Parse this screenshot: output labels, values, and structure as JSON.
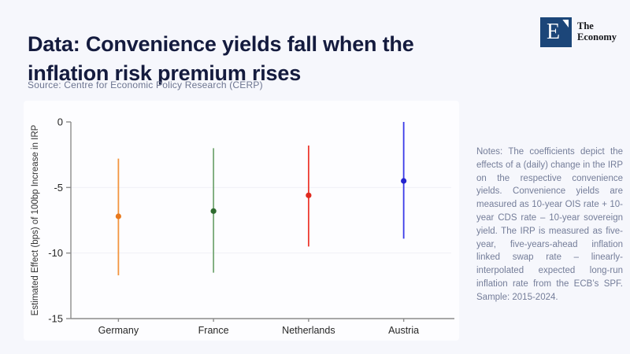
{
  "header": {
    "title": "Data: Convenience yields fall when the inflation risk premium rises",
    "source": "Source: Centre for Economic Policy Research (CERP)"
  },
  "logo": {
    "mark_letter": "E",
    "name_line1": "The",
    "name_line2": "Economy",
    "mark_color": "#1c4679"
  },
  "notes": {
    "text": "Notes: The coefficients depict the effects of a (daily) change in the IRP on the respective convenience yields. Convenience yields are measured as 10-year OIS rate + 10-year CDS rate – 10-year sovereign yield. The IRP is measured as five-year, five-years-ahead inflation linked swap rate – linearly-interpolated expected long-run inflation rate from the ECB’s SPF. Sample: 2015-2024."
  },
  "chart_data": {
    "type": "scatter",
    "subtype": "coefficient-plot-with-ci",
    "title": "",
    "xlabel": "",
    "ylabel": "Estimated Effect (bps) of 100bp Increase in IRP",
    "categories": [
      "Germany",
      "France",
      "Netherlands",
      "Austria"
    ],
    "series": [
      {
        "name": "Estimated effect (bps)",
        "values": [
          -7.2,
          -6.8,
          -5.6,
          -4.5
        ]
      }
    ],
    "ci_high": [
      -2.8,
      -2.0,
      -1.8,
      0.0
    ],
    "ci_low": [
      -11.7,
      -11.5,
      -9.5,
      -8.9
    ],
    "point_colors": [
      "#e8791d",
      "#2e6b2e",
      "#e02a1f",
      "#2424cf"
    ],
    "line_colors": [
      "#f2953f",
      "#76a876",
      "#ed3b31",
      "#3a3ae8"
    ],
    "yticks": [
      0,
      -5,
      -10,
      -15
    ],
    "ylim": [
      -15,
      0
    ],
    "grid_at": [
      -5,
      -10
    ],
    "grid_color": "#f0f0f6",
    "axis_color": "#8c8c8c",
    "tick_label_color": "#262626",
    "legend_position": "none"
  }
}
